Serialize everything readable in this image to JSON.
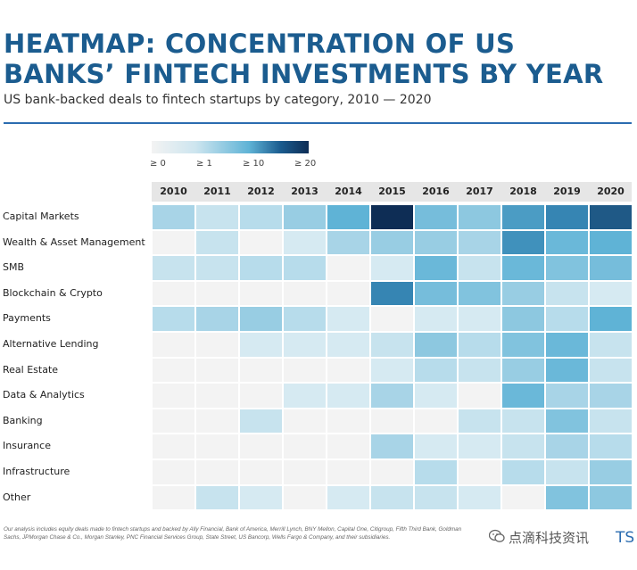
{
  "title": "HEATMAP: CONCENTRATION OF US BANKS’ FINTECH INVESTMENTS BY YEAR",
  "subtitle": "US bank-backed deals to fintech startups by category, 2010 — 2020",
  "legend": {
    "labels": [
      "≥ 0",
      "≥ 1",
      "≥ 10",
      "≥ 20"
    ],
    "colors": [
      "#f3f3f3",
      "#cde5ef",
      "#5fb3d6",
      "#0e2d55"
    ]
  },
  "footnote": "Our analysis includes equity deals made to fintech startups and backed by Ally Financial, Bank of America, Merrill Lynch, BNY Mellon, Capital One, Citigroup, Fifth Third Bank, Goldman Sachs, JPMorgan Chase & Co., Morgan Stanley, PNC Financial Services Group, State Street, US Bancorp, Wells Fargo & Company, and their subsidiaries.",
  "watermark": {
    "text": "点滴科技资讯",
    "suffix": "TS"
  },
  "chart_data": {
    "type": "heatmap",
    "title": "HEATMAP: CONCENTRATION OF US BANKS’ FINTECH INVESTMENTS BY YEAR",
    "subtitle": "US bank-backed deals to fintech startups by category, 2010 — 2020",
    "x": [
      "2010",
      "2011",
      "2012",
      "2013",
      "2014",
      "2015",
      "2016",
      "2017",
      "2018",
      "2019",
      "2020"
    ],
    "y": [
      "Capital Markets",
      "Wealth & Asset Management",
      "SMB",
      "Blockchain & Crypto",
      "Payments",
      "Alternative Lending",
      "Real Estate",
      "Data & Analytics",
      "Banking",
      "Insurance",
      "Infrastructure",
      "Other"
    ],
    "values": [
      [
        4,
        2,
        3,
        5,
        10,
        22,
        8,
        6,
        12,
        14,
        18
      ],
      [
        0,
        2,
        0,
        1,
        4,
        5,
        5,
        4,
        13,
        9,
        10
      ],
      [
        2,
        2,
        3,
        3,
        0,
        1,
        9,
        2,
        9,
        7,
        8
      ],
      [
        0,
        0,
        0,
        0,
        0,
        14,
        8,
        7,
        5,
        2,
        1
      ],
      [
        3,
        4,
        5,
        3,
        1,
        0,
        1,
        1,
        6,
        3,
        10
      ],
      [
        0,
        0,
        1,
        1,
        1,
        2,
        6,
        3,
        7,
        9,
        2
      ],
      [
        0,
        0,
        0,
        0,
        0,
        1,
        3,
        2,
        5,
        9,
        2
      ],
      [
        0,
        0,
        0,
        1,
        1,
        4,
        1,
        0,
        9,
        4,
        4
      ],
      [
        0,
        0,
        2,
        0,
        0,
        0,
        0,
        2,
        2,
        7,
        2
      ],
      [
        0,
        0,
        0,
        0,
        0,
        4,
        1,
        1,
        2,
        4,
        3
      ],
      [
        0,
        0,
        0,
        0,
        0,
        0,
        3,
        0,
        3,
        2,
        5
      ],
      [
        0,
        2,
        1,
        0,
        1,
        2,
        2,
        1,
        0,
        7,
        6
      ]
    ],
    "legend_thresholds": [
      0,
      1,
      10,
      20
    ],
    "grid": false
  }
}
